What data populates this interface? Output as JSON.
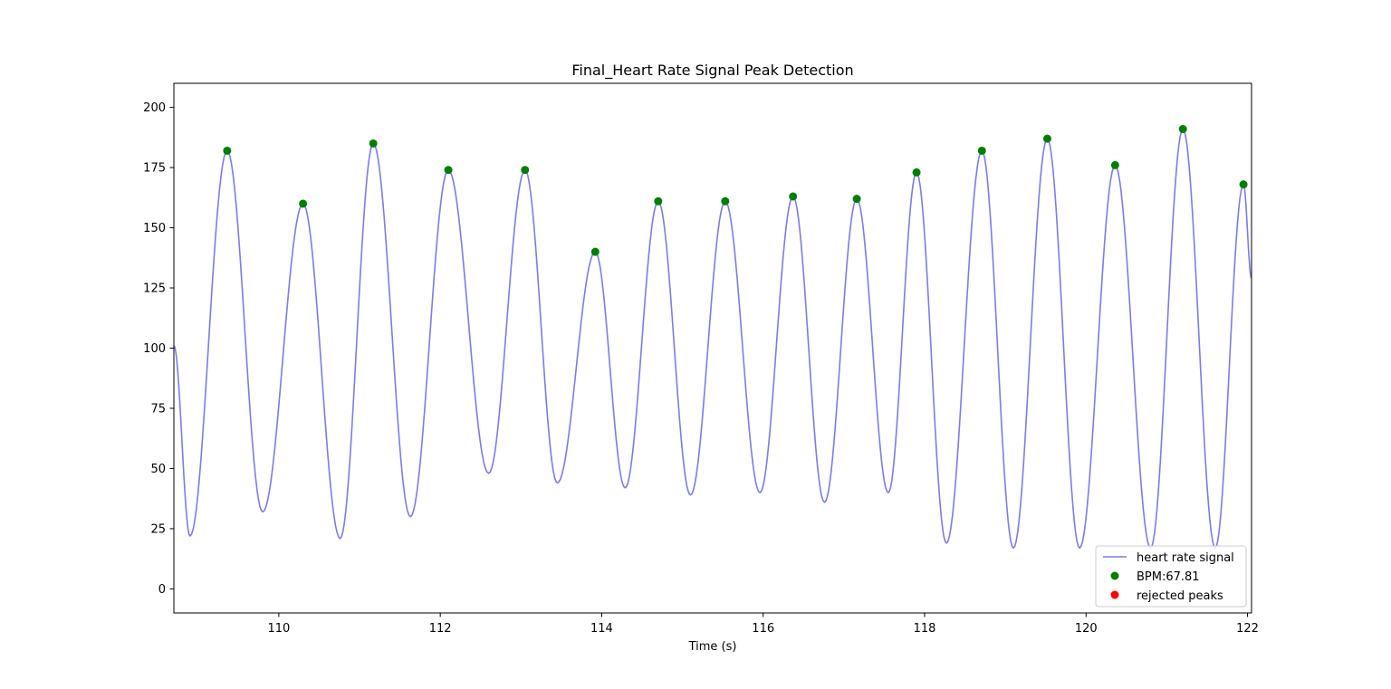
{
  "chart_data": {
    "type": "line",
    "title": "Final_Heart Rate Signal Peak Detection",
    "xlabel": "Time (s)",
    "ylabel": "",
    "xlim": [
      108.7,
      122.05
    ],
    "ylim": [
      -10,
      210
    ],
    "xticks": [
      110,
      112,
      114,
      116,
      118,
      120,
      122
    ],
    "yticks": [
      0,
      25,
      50,
      75,
      100,
      125,
      150,
      175,
      200
    ],
    "grid": false,
    "legend_position": "lower right",
    "series": [
      {
        "name": "heart rate signal",
        "kind": "line",
        "color": "#7b7bf0",
        "x": [
          108.7,
          108.9,
          109.36,
          109.8,
          110.3,
          110.76,
          111.17,
          111.63,
          112.1,
          112.6,
          113.05,
          113.45,
          113.92,
          114.29,
          114.7,
          115.1,
          115.53,
          115.96,
          116.37,
          116.76,
          117.16,
          117.55,
          117.9,
          118.27,
          118.71,
          119.1,
          119.52,
          119.92,
          120.36,
          120.8,
          121.2,
          121.6,
          121.95,
          122.05
        ],
        "y": [
          101,
          22,
          182,
          32,
          160,
          21,
          185,
          30,
          174,
          48,
          174,
          44,
          140,
          42,
          161,
          39,
          161,
          40,
          163,
          36,
          162,
          40,
          173,
          19,
          182,
          17,
          187,
          17,
          176,
          17,
          191,
          17,
          168,
          129
        ]
      },
      {
        "name": "BPM:67.81",
        "kind": "scatter",
        "color": "#008000",
        "x": [
          109.36,
          110.3,
          111.17,
          112.1,
          113.05,
          113.92,
          114.7,
          115.53,
          116.37,
          117.16,
          117.9,
          118.71,
          119.52,
          120.36,
          121.2,
          121.95
        ],
        "y": [
          182,
          160,
          185,
          174,
          174,
          140,
          161,
          161,
          163,
          162,
          173,
          182,
          187,
          176,
          191,
          168
        ]
      },
      {
        "name": "rejected peaks",
        "kind": "scatter",
        "color": "#ff0000",
        "x": [],
        "y": []
      }
    ]
  }
}
